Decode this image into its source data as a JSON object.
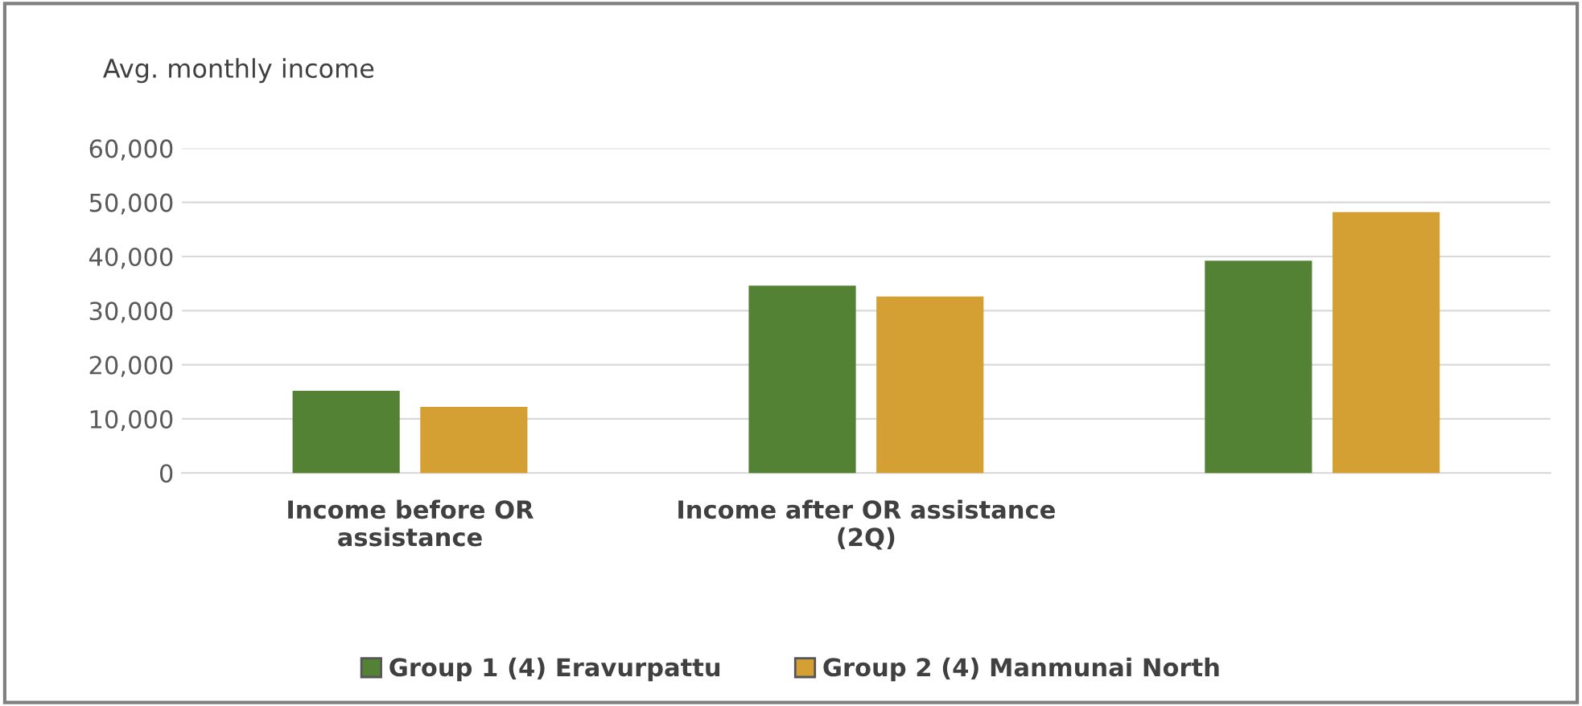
{
  "chart_data": {
    "type": "bar",
    "title": "Avg. monthly income",
    "categories": [
      "Income before OR\nassistance",
      "Income after OR assistance\n(2Q)",
      null
    ],
    "series": [
      {
        "name": "Group 1 (4) Eravurpattu",
        "color": "#548235",
        "values": [
          15000,
          34400,
          39000
        ]
      },
      {
        "name": "Group 2 (4) Manmunai North",
        "color": "#d4a033",
        "values": [
          12000,
          32400,
          48000
        ]
      }
    ],
    "ylim": [
      0,
      60000
    ],
    "yticks": [
      {
        "value": 0,
        "label": "0"
      },
      {
        "value": 10000,
        "label": "10,000"
      },
      {
        "value": 20000,
        "label": "20,000"
      },
      {
        "value": 30000,
        "label": "30,000"
      },
      {
        "value": 40000,
        "label": "40,000"
      },
      {
        "value": 50000,
        "label": "50,000"
      },
      {
        "value": 60000,
        "label": "60,000"
      }
    ],
    "grid": "y",
    "legend": "bottom"
  }
}
